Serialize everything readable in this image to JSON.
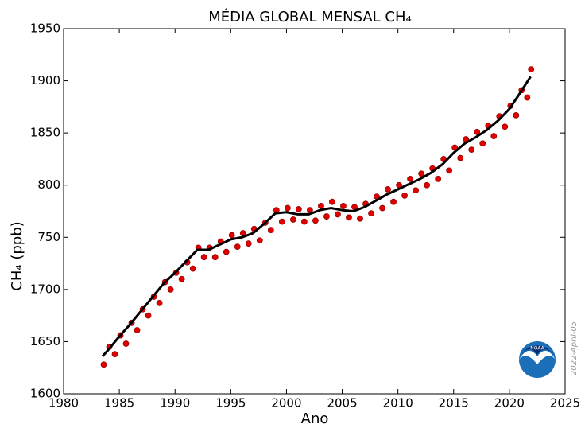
{
  "chart_data": {
    "type": "line",
    "title": "MÉDIA GLOBAL MENSAL CH₄",
    "x_label": "Ano",
    "y_label": "CH₄   (ppb)",
    "date_stamp": "2022-April-05",
    "logo_text": "NOAA",
    "xlim": [
      1980,
      2025
    ],
    "xticks": [
      1980,
      1985,
      1990,
      1995,
      2000,
      2005,
      2010,
      2015,
      2020,
      2025
    ],
    "ylim": [
      1600,
      1950
    ],
    "yticks": [
      1600,
      1650,
      1700,
      {
        "value": 1750,
        "label": "750"
      },
      {
        "value": 1800,
        "label": "800"
      },
      1850,
      1900,
      1950
    ],
    "series": [
      {
        "style": "markers",
        "color": "#e00000",
        "x": [
          1983.6,
          1984.1,
          1984.6,
          1985.1,
          1985.6,
          1986.1,
          1986.6,
          1987.1,
          1987.6,
          1988.1,
          1988.6,
          1989.1,
          1989.6,
          1990.1,
          1990.6,
          1991.1,
          1991.6,
          1992.1,
          1992.6,
          1993.1,
          1993.6,
          1994.1,
          1994.6,
          1995.1,
          1995.6,
          1996.1,
          1996.6,
          1997.1,
          1997.6,
          1998.1,
          1998.6,
          1999.1,
          1999.6,
          2000.1,
          2000.6,
          2001.1,
          2001.6,
          2002.1,
          2002.6,
          2003.1,
          2003.6,
          2004.1,
          2004.6,
          2005.1,
          2005.6,
          2006.1,
          2006.6,
          2007.1,
          2007.6,
          2008.1,
          2008.6,
          2009.1,
          2009.6,
          2010.1,
          2010.6,
          2011.1,
          2011.6,
          2012.1,
          2012.6,
          2013.1,
          2013.6,
          2014.1,
          2014.6,
          2015.1,
          2015.6,
          2016.1,
          2016.6,
          2017.1,
          2017.6,
          2018.1,
          2018.6,
          2019.1,
          2019.6,
          2020.1,
          2020.6,
          2021.1,
          2021.6,
          2021.95
        ],
        "values": [
          1628,
          1645,
          1638,
          1656,
          1648,
          1668,
          1661,
          1681,
          1675,
          1693,
          1687,
          1707,
          1700,
          1716,
          1710,
          1726,
          1720,
          1740,
          1731,
          1740,
          1731,
          1746,
          1736,
          1752,
          1741,
          1754,
          1744,
          1758,
          1747,
          1764,
          1757,
          1776,
          1765,
          1778,
          1767,
          1777,
          1765,
          1776,
          1766,
          1780,
          1770,
          1784,
          1772,
          1780,
          1769,
          1779,
          1768,
          1782,
          1773,
          1789,
          1778,
          1796,
          1784,
          1800,
          1790,
          1806,
          1795,
          1811,
          1800,
          1816,
          1806,
          1825,
          1814,
          1836,
          1826,
          1844,
          1834,
          1851,
          1840,
          1857,
          1847,
          1866,
          1856,
          1876,
          1867,
          1891,
          1884,
          1911
        ]
      },
      {
        "style": "line",
        "color": "#000000",
        "x": [
          1983.5,
          1984,
          1985,
          1986,
          1987,
          1988,
          1989,
          1990,
          1991,
          1992,
          1993,
          1994,
          1995,
          1996,
          1997,
          1998,
          1999,
          2000,
          2001,
          2002,
          2003,
          2004,
          2005,
          2006,
          2007,
          2008,
          2009,
          2010,
          2011,
          2012,
          2013,
          2014,
          2015,
          2016,
          2017,
          2018,
          2019,
          2020,
          2021,
          2021.9
        ],
        "values": [
          1636,
          1642,
          1655,
          1667,
          1680,
          1693,
          1706,
          1716,
          1727,
          1738,
          1738,
          1743,
          1748,
          1750,
          1754,
          1763,
          1773,
          1774,
          1772,
          1772,
          1776,
          1778,
          1776,
          1775,
          1779,
          1785,
          1791,
          1796,
          1801,
          1806,
          1812,
          1820,
          1831,
          1840,
          1846,
          1853,
          1862,
          1873,
          1889,
          1904
        ]
      }
    ]
  }
}
